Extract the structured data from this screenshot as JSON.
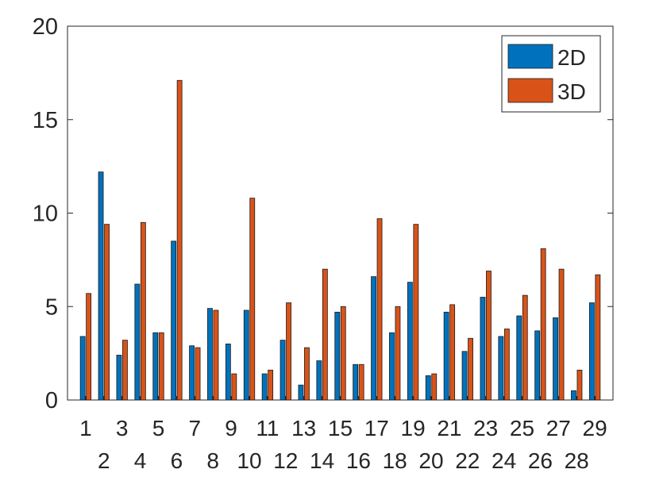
{
  "chart_data": {
    "type": "bar",
    "title": "",
    "xlabel": "",
    "ylabel": "",
    "ylim": [
      0,
      20
    ],
    "yticks": [
      "0",
      "5",
      "10",
      "15",
      "20"
    ],
    "categories": [
      "1",
      "2",
      "3",
      "4",
      "5",
      "6",
      "7",
      "8",
      "9",
      "10",
      "11",
      "12",
      "13",
      "14",
      "15",
      "16",
      "17",
      "18",
      "19",
      "20",
      "21",
      "22",
      "23",
      "24",
      "25",
      "26",
      "27",
      "28",
      "29"
    ],
    "series": [
      {
        "name": "2D",
        "color": "#0072bd",
        "values": [
          3.4,
          12.2,
          2.4,
          6.2,
          3.6,
          8.5,
          2.9,
          4.9,
          3.0,
          4.8,
          1.4,
          3.2,
          0.8,
          2.1,
          4.7,
          1.9,
          6.6,
          3.6,
          6.3,
          1.3,
          4.7,
          2.6,
          5.5,
          3.4,
          4.5,
          3.7,
          4.4,
          0.5,
          5.2
        ]
      },
      {
        "name": "3D",
        "color": "#d95319",
        "values": [
          5.7,
          9.4,
          3.2,
          9.5,
          3.6,
          17.1,
          2.8,
          4.8,
          1.4,
          10.8,
          1.6,
          5.2,
          2.8,
          7.0,
          5.0,
          1.9,
          9.7,
          5.0,
          9.4,
          1.4,
          5.1,
          3.3,
          6.9,
          3.8,
          5.6,
          8.1,
          7.0,
          1.6,
          6.7
        ]
      }
    ],
    "legend": {
      "position": "top-right",
      "entries": [
        "2D",
        "3D"
      ]
    },
    "grid": false
  }
}
